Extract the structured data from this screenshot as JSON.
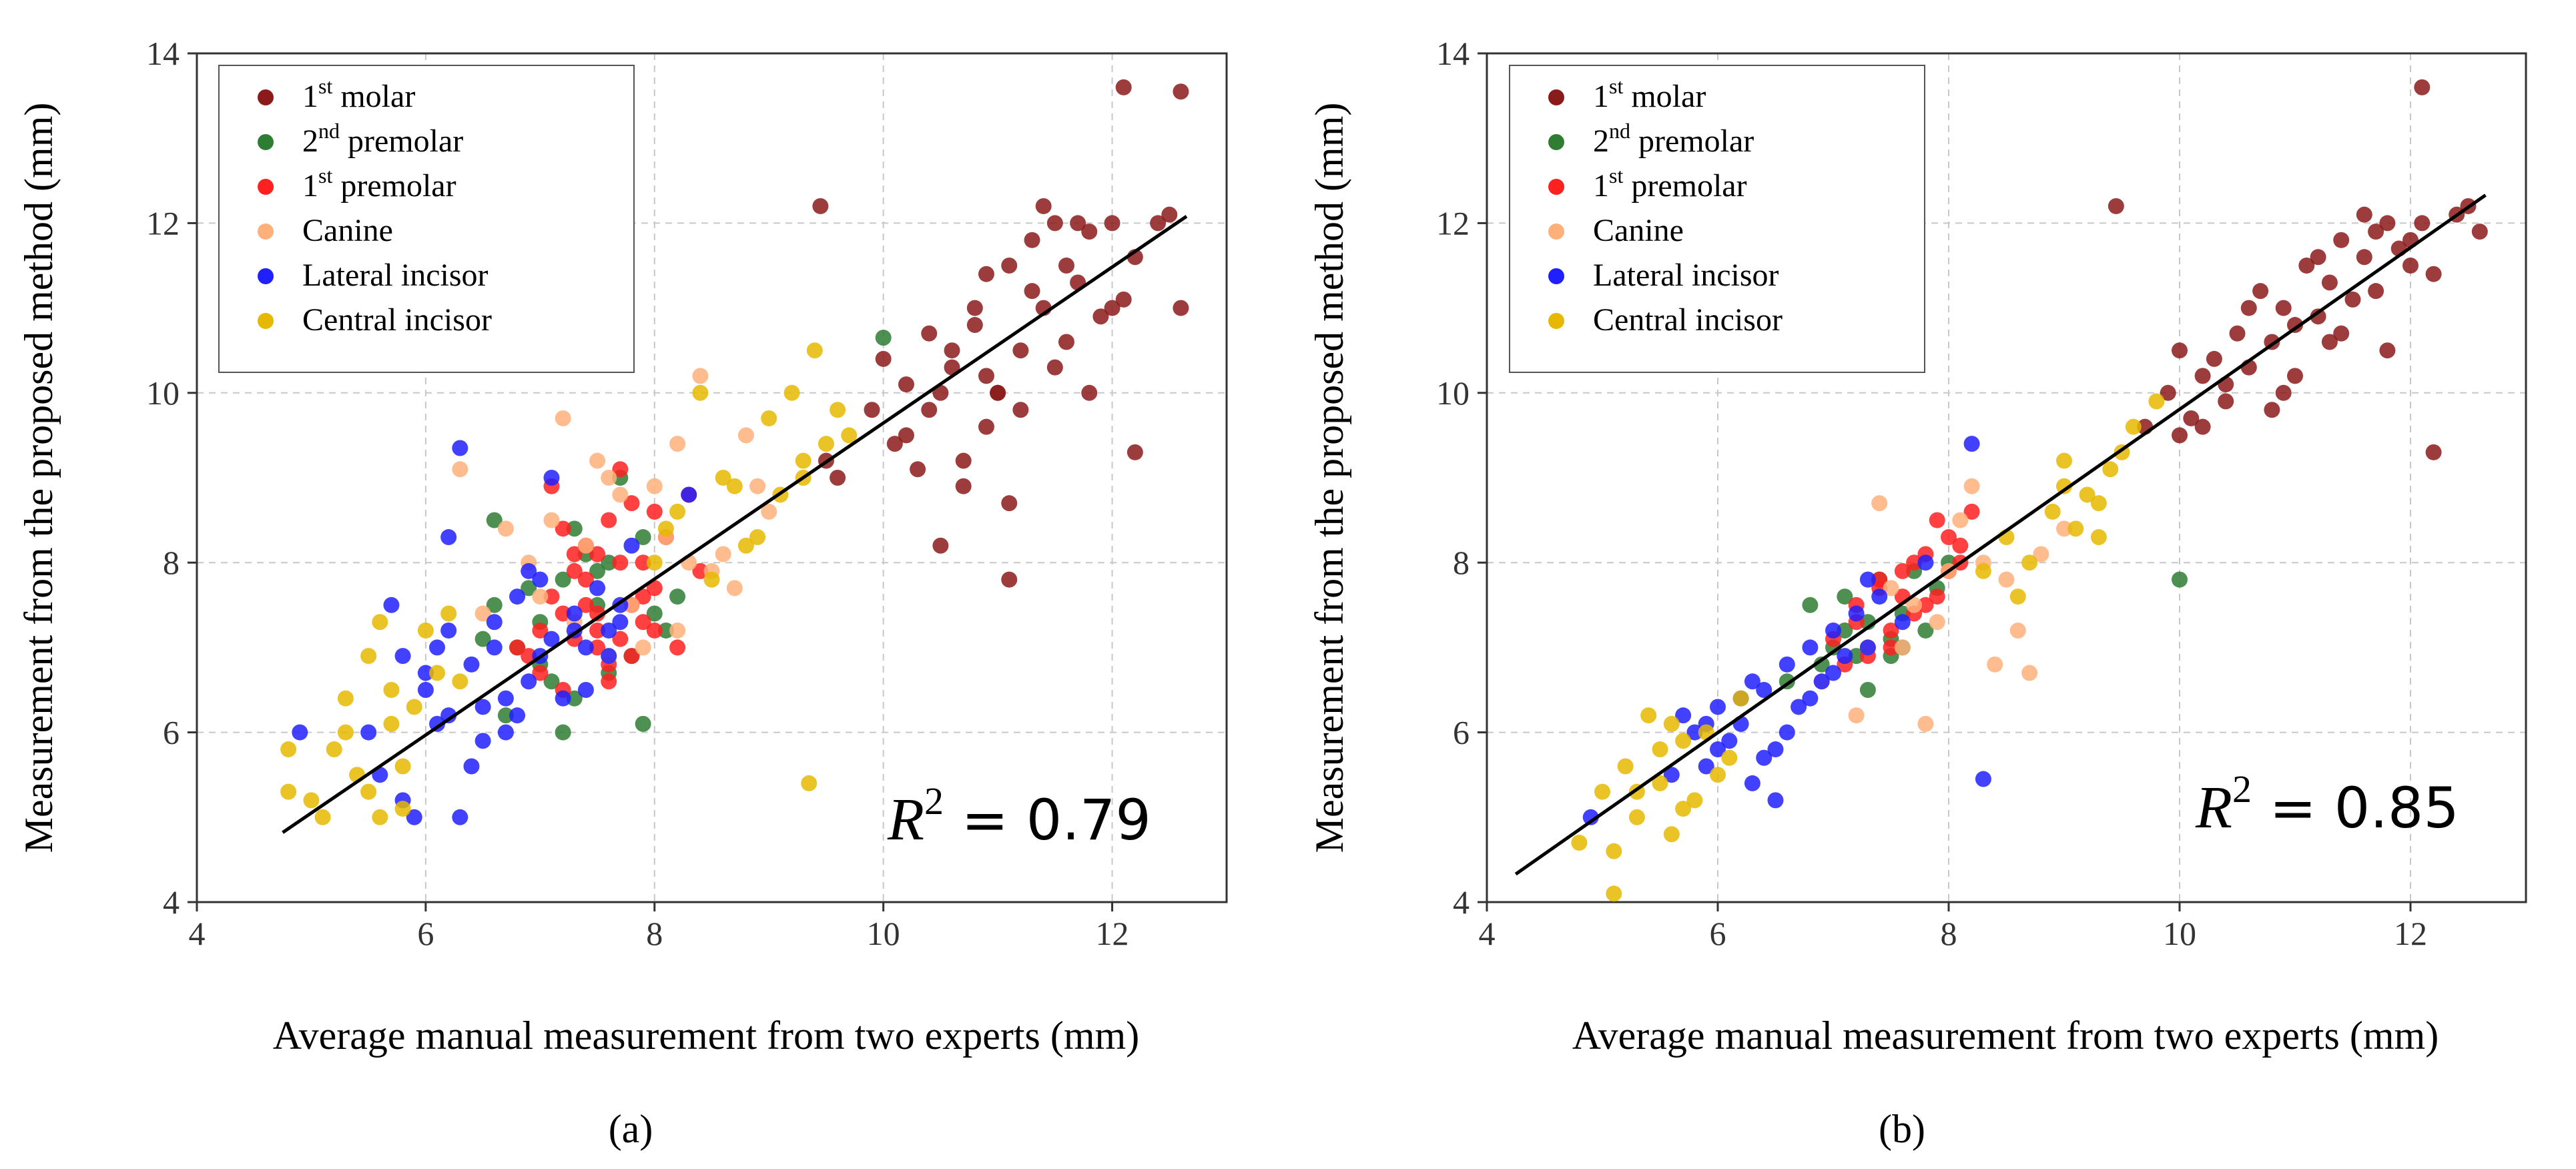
{
  "chart_data": [
    {
      "id": "a",
      "type": "scatter",
      "caption": "(a)",
      "xlabel": "Average manual measurement from two experts (mm)",
      "ylabel": "Measurement from the proposed method (mm)",
      "xlim": [
        4,
        13
      ],
      "ylim": [
        4,
        14
      ],
      "xticks": [
        "4",
        "6",
        "8",
        "10",
        "12"
      ],
      "yticks": [
        "4",
        "6",
        "8",
        "10",
        "12",
        "14"
      ],
      "grid": true,
      "legend_position": "top-left",
      "annotation": {
        "prefix": "R",
        "sup": "2",
        "text": " = 0.79"
      },
      "fit_line": {
        "x": [
          4.75,
          12.65
        ],
        "y": [
          4.82,
          12.08
        ]
      },
      "series": [
        {
          "name": "1st molar",
          "label_base": "1",
          "label_sup": "st",
          "label_rest": " molar",
          "color": "#8b1a1a",
          "x": [
            10.0,
            10.2,
            10.4,
            10.5,
            10.6,
            10.7,
            10.8,
            10.9,
            11.0,
            11.1,
            11.2,
            11.3,
            11.4,
            11.5,
            11.6,
            11.7,
            11.8,
            12.0,
            12.1,
            12.2,
            12.4,
            12.6,
            12.6,
            12.1,
            12.2,
            11.9,
            11.5,
            11.1,
            10.9,
            10.6,
            10.3,
            10.1,
            9.9,
            9.6,
            9.5,
            10.4,
            10.8,
            11.0,
            11.3,
            11.7,
            12.0,
            12.5,
            9.45,
            10.5,
            11.1,
            10.7,
            11.4,
            11.6,
            10.2,
            10.9,
            11.2,
            11.8
          ],
          "y": [
            10.4,
            9.5,
            9.8,
            10.0,
            10.5,
            9.2,
            10.8,
            10.2,
            10.0,
            11.5,
            10.5,
            11.2,
            11.0,
            12.0,
            11.5,
            12.0,
            10.0,
            12.0,
            11.1,
            9.3,
            12.0,
            13.55,
            11.0,
            13.6,
            11.6,
            10.9,
            10.3,
            8.7,
            9.6,
            10.3,
            9.1,
            9.4,
            9.8,
            9.0,
            9.2,
            10.7,
            11.0,
            10.0,
            11.8,
            11.3,
            11.0,
            12.1,
            12.2,
            8.2,
            7.8,
            8.9,
            12.2,
            10.6,
            10.1,
            11.4,
            9.8,
            11.9
          ]
        },
        {
          "name": "2nd premolar",
          "label_base": "2",
          "label_sup": "nd",
          "label_rest": " premolar",
          "color": "#2e7d32",
          "x": [
            6.6,
            6.8,
            7.0,
            7.2,
            7.3,
            7.5,
            7.6,
            7.7,
            7.9,
            8.0,
            7.1,
            7.4,
            6.9,
            7.8,
            8.1,
            6.7,
            7.0,
            7.5,
            7.9,
            6.5,
            7.2,
            10.0,
            7.6,
            7.3,
            8.2,
            6.6
          ],
          "y": [
            8.5,
            7.0,
            7.3,
            7.8,
            6.4,
            7.5,
            8.0,
            9.0,
            6.1,
            7.4,
            6.6,
            8.1,
            7.7,
            6.9,
            7.2,
            6.2,
            6.8,
            7.9,
            8.3,
            7.1,
            6.0,
            10.65,
            6.7,
            8.4,
            7.6,
            7.5
          ]
        },
        {
          "name": "1st premolar",
          "label_base": "1",
          "label_sup": "st",
          "label_rest": " premolar",
          "color": "#ff2020",
          "x": [
            7.0,
            7.1,
            7.2,
            7.3,
            7.4,
            7.5,
            7.6,
            7.7,
            7.8,
            7.9,
            8.0,
            8.1,
            8.2,
            7.2,
            7.4,
            7.6,
            7.8,
            8.0,
            7.1,
            7.3,
            7.5,
            7.7,
            7.9,
            8.3,
            6.9,
            7.5,
            7.7,
            7.3,
            7.8,
            8.0,
            7.6,
            7.4,
            7.2,
            7.0,
            6.8,
            8.4,
            7.9,
            7.5
          ],
          "y": [
            6.7,
            8.9,
            7.4,
            7.1,
            8.2,
            7.2,
            6.8,
            9.1,
            7.5,
            8.0,
            7.7,
            8.3,
            7.0,
            6.5,
            7.8,
            8.5,
            6.9,
            8.6,
            7.6,
            7.9,
            7.0,
            8.0,
            7.3,
            8.8,
            6.9,
            7.4,
            7.1,
            8.1,
            8.7,
            7.2,
            6.6,
            7.5,
            8.4,
            7.2,
            7.0,
            7.9,
            7.6,
            8.1
          ]
        },
        {
          "name": "Canine",
          "label_base": "Canine",
          "label_sup": "",
          "label_rest": "",
          "color": "#ffb07a",
          "x": [
            6.3,
            6.7,
            6.9,
            7.2,
            7.4,
            7.6,
            7.8,
            8.0,
            8.2,
            8.4,
            8.6,
            8.8,
            9.0,
            7.3,
            7.7,
            8.1,
            8.5,
            7.0,
            7.5,
            7.9,
            8.3,
            8.7,
            6.5,
            7.1,
            8.9,
            8.2,
            7.6
          ],
          "y": [
            9.1,
            8.4,
            8.0,
            9.7,
            8.2,
            9.0,
            7.5,
            8.9,
            9.4,
            10.2,
            8.1,
            9.5,
            8.6,
            7.3,
            8.8,
            8.3,
            7.9,
            7.6,
            9.2,
            7.0,
            8.0,
            7.7,
            7.4,
            8.5,
            8.9,
            7.2,
            6.9
          ]
        },
        {
          "name": "Lateral incisor",
          "label_base": "Lateral incisor",
          "label_sup": "",
          "label_rest": "",
          "color": "#2020ff",
          "x": [
            5.5,
            5.7,
            5.8,
            6.0,
            6.1,
            6.2,
            6.3,
            6.4,
            6.5,
            6.6,
            6.7,
            6.8,
            6.9,
            7.0,
            7.1,
            7.2,
            7.3,
            7.4,
            7.5,
            7.6,
            7.7,
            7.8,
            4.9,
            5.9,
            6.2,
            6.3,
            6.4,
            6.0,
            6.5,
            6.6,
            7.1,
            7.4,
            7.6,
            8.3,
            6.8,
            7.0,
            6.2,
            6.7,
            5.6,
            5.8,
            6.9,
            7.3,
            7.7,
            6.1
          ],
          "y": [
            6.0,
            7.5,
            5.2,
            6.5,
            7.0,
            6.2,
            9.35,
            6.8,
            5.9,
            7.3,
            6.0,
            7.6,
            6.6,
            7.8,
            7.1,
            6.4,
            7.4,
            7.0,
            7.7,
            6.9,
            7.3,
            8.2,
            6.0,
            5.0,
            8.3,
            5.0,
            5.6,
            6.7,
            6.3,
            7.0,
            9.0,
            6.5,
            7.2,
            8.8,
            6.2,
            6.9,
            7.2,
            6.4,
            5.5,
            6.9,
            7.9,
            7.2,
            7.5,
            6.1
          ]
        },
        {
          "name": "Central incisor",
          "label_base": "Central incisor",
          "label_sup": "",
          "label_rest": "",
          "color": "#e6b800",
          "x": [
            4.8,
            5.0,
            5.2,
            5.3,
            5.4,
            5.5,
            5.6,
            5.7,
            5.8,
            5.9,
            6.0,
            6.1,
            6.2,
            5.1,
            5.3,
            5.5,
            5.7,
            8.0,
            8.2,
            8.4,
            8.6,
            8.8,
            9.0,
            9.1,
            9.2,
            9.3,
            9.4,
            9.5,
            9.7,
            8.5,
            8.9,
            9.35,
            4.8,
            5.6,
            5.8,
            6.3,
            9.3,
            8.1,
            8.7,
            9.6
          ],
          "y": [
            5.3,
            5.2,
            5.8,
            6.4,
            5.5,
            6.9,
            5.0,
            6.1,
            5.6,
            6.3,
            7.2,
            6.7,
            7.4,
            5.0,
            6.0,
            5.3,
            6.5,
            8.0,
            8.6,
            10.0,
            9.0,
            8.2,
            9.7,
            8.8,
            10.0,
            9.2,
            10.5,
            9.4,
            9.5,
            7.8,
            8.3,
            5.4,
            5.8,
            7.3,
            5.1,
            6.6,
            9.0,
            8.4,
            8.9,
            9.8
          ]
        }
      ]
    },
    {
      "id": "b",
      "type": "scatter",
      "caption": "(b)",
      "xlabel": "Average manual measurement from two experts (mm)",
      "ylabel": "Measurement from the proposed method (mm)",
      "xlim": [
        4,
        13
      ],
      "ylim": [
        4,
        14
      ],
      "xticks": [
        "4",
        "6",
        "8",
        "10",
        "12"
      ],
      "yticks": [
        "4",
        "6",
        "8",
        "10",
        "12",
        "14"
      ],
      "grid": true,
      "legend_position": "top-left",
      "annotation": {
        "prefix": "R",
        "sup": "2",
        "text": " = 0.85"
      },
      "fit_line": {
        "x": [
          4.25,
          12.65
        ],
        "y": [
          4.33,
          12.33
        ]
      },
      "series": [
        {
          "name": "1st molar",
          "label_base": "1",
          "label_sup": "st",
          "label_rest": " molar",
          "color": "#8b1a1a",
          "x": [
            9.7,
            9.9,
            10.0,
            10.1,
            10.2,
            10.3,
            10.4,
            10.5,
            10.6,
            10.7,
            10.8,
            10.9,
            11.0,
            11.1,
            11.2,
            11.3,
            11.4,
            11.5,
            11.6,
            11.7,
            11.8,
            11.9,
            12.0,
            12.1,
            12.2,
            12.4,
            12.5,
            12.6,
            12.1,
            12.2,
            9.45,
            10.2,
            10.6,
            11.0,
            11.4,
            11.8,
            10.4,
            10.8,
            11.2,
            11.6,
            12.0,
            10.0,
            10.9,
            11.3,
            11.7
          ],
          "y": [
            9.6,
            10.0,
            10.5,
            9.7,
            10.2,
            10.4,
            9.9,
            10.7,
            10.3,
            11.2,
            10.6,
            11.0,
            10.8,
            11.5,
            10.9,
            11.3,
            11.8,
            11.1,
            11.6,
            11.2,
            12.0,
            11.7,
            11.5,
            12.0,
            11.4,
            12.1,
            12.2,
            11.9,
            13.6,
            9.3,
            12.2,
            9.6,
            11.0,
            10.2,
            10.7,
            10.5,
            10.1,
            9.8,
            11.6,
            12.1,
            11.8,
            9.5,
            10.0,
            10.6,
            11.9
          ]
        },
        {
          "name": "2nd premolar",
          "label_base": "2",
          "label_sup": "nd",
          "label_rest": " premolar",
          "color": "#2e7d32",
          "x": [
            6.6,
            6.8,
            7.0,
            7.1,
            7.2,
            7.3,
            7.4,
            7.5,
            7.6,
            7.7,
            7.8,
            7.9,
            8.0,
            6.9,
            7.3,
            7.6,
            10.0,
            7.1,
            7.5
          ],
          "y": [
            6.6,
            7.5,
            7.0,
            7.6,
            6.9,
            7.3,
            7.8,
            7.1,
            7.4,
            7.9,
            7.2,
            7.7,
            8.0,
            6.8,
            6.5,
            7.0,
            7.8,
            7.2,
            6.9
          ]
        },
        {
          "name": "1st premolar",
          "label_base": "1",
          "label_sup": "st",
          "label_rest": " premolar",
          "color": "#ff2020",
          "x": [
            7.0,
            7.1,
            7.2,
            7.3,
            7.4,
            7.5,
            7.6,
            7.7,
            7.8,
            7.9,
            8.0,
            8.1,
            8.2,
            7.2,
            7.5,
            7.8,
            8.1,
            7.3,
            7.7,
            7.4,
            7.9,
            8.0,
            7.6
          ],
          "y": [
            7.1,
            6.8,
            7.5,
            7.0,
            7.7,
            7.2,
            7.9,
            7.4,
            8.1,
            7.6,
            8.3,
            8.0,
            8.6,
            7.3,
            7.0,
            7.5,
            8.2,
            6.9,
            8.0,
            7.8,
            8.5,
            7.9,
            7.6
          ]
        },
        {
          "name": "Canine",
          "label_base": "Canine",
          "label_sup": "",
          "label_rest": "",
          "color": "#ffb07a",
          "x": [
            7.2,
            7.4,
            7.6,
            7.8,
            8.0,
            8.2,
            8.4,
            8.6,
            8.8,
            9.0,
            7.5,
            7.9,
            8.3,
            8.7,
            8.1,
            7.7,
            8.5,
            6.9,
            7.3
          ],
          "y": [
            6.2,
            8.7,
            7.0,
            6.1,
            7.9,
            8.9,
            6.8,
            7.2,
            8.1,
            8.4,
            7.7,
            7.3,
            8.0,
            6.7,
            8.5,
            7.5,
            7.8,
            6.6,
            7.0
          ]
        },
        {
          "name": "Lateral incisor",
          "label_base": "Lateral incisor",
          "label_sup": "",
          "label_rest": "",
          "color": "#2020ff",
          "x": [
            4.9,
            5.6,
            5.8,
            5.9,
            6.0,
            6.1,
            6.2,
            6.3,
            6.4,
            6.5,
            6.6,
            6.7,
            6.8,
            6.9,
            7.0,
            7.1,
            7.2,
            7.3,
            7.4,
            7.6,
            7.8,
            8.2,
            8.3,
            6.5,
            5.7,
            6.0,
            6.3,
            6.6,
            6.8,
            7.0,
            7.3,
            6.2,
            6.4,
            5.9
          ],
          "y": [
            5.0,
            5.5,
            6.0,
            5.6,
            6.3,
            5.9,
            6.1,
            5.4,
            6.5,
            5.8,
            6.8,
            6.3,
            7.0,
            6.6,
            7.2,
            6.9,
            7.4,
            7.0,
            7.6,
            7.3,
            8.0,
            9.4,
            5.45,
            5.2,
            6.2,
            5.8,
            6.6,
            6.0,
            6.4,
            6.7,
            7.8,
            6.4,
            5.7,
            6.1
          ]
        },
        {
          "name": "Central incisor",
          "label_base": "Central incisor",
          "label_sup": "",
          "label_rest": "",
          "color": "#e6b800",
          "x": [
            4.8,
            5.0,
            5.1,
            5.2,
            5.3,
            5.4,
            5.5,
            5.6,
            5.7,
            5.8,
            5.9,
            6.0,
            6.2,
            5.1,
            5.5,
            5.7,
            8.3,
            8.5,
            8.7,
            8.9,
            9.0,
            9.1,
            9.2,
            9.3,
            9.4,
            9.5,
            9.6,
            9.8,
            8.6,
            9.0,
            9.3,
            5.3,
            5.6,
            6.1
          ],
          "y": [
            4.7,
            5.3,
            4.1,
            5.6,
            5.0,
            6.2,
            5.4,
            4.8,
            5.9,
            5.2,
            6.0,
            5.5,
            6.4,
            4.6,
            5.8,
            5.1,
            7.9,
            8.3,
            8.0,
            8.6,
            8.9,
            8.4,
            8.8,
            8.3,
            9.1,
            9.3,
            9.6,
            9.9,
            7.6,
            9.2,
            8.7,
            5.3,
            6.1,
            5.7
          ]
        }
      ]
    }
  ]
}
